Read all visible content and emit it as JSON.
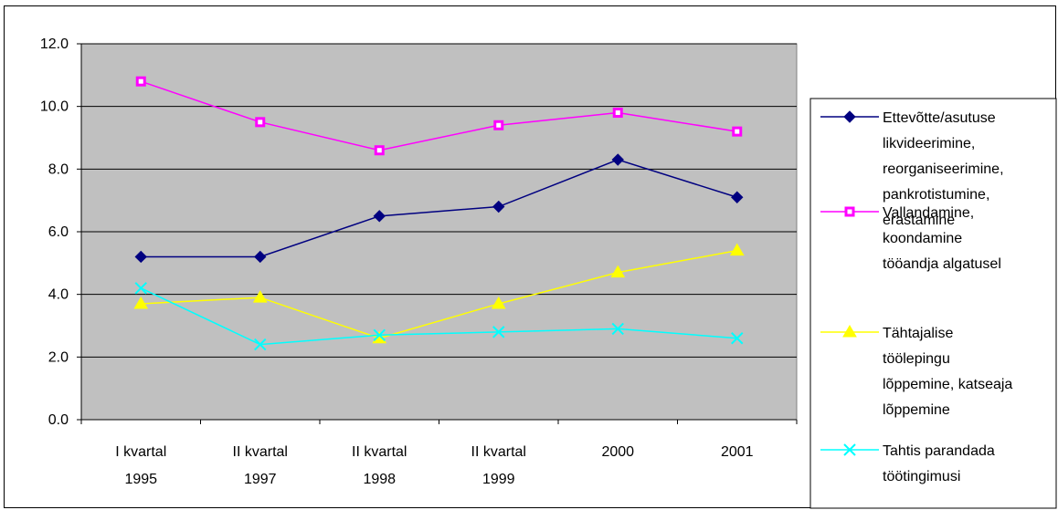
{
  "chart_data": {
    "type": "line",
    "categories": [
      [
        "I kvartal",
        "1995"
      ],
      [
        "II kvartal",
        "1997"
      ],
      [
        "II kvartal",
        "1998"
      ],
      [
        "II kvartal",
        "1999"
      ],
      [
        "2000"
      ],
      [
        "2001"
      ]
    ],
    "ylim": [
      0,
      12
    ],
    "yticks": [
      "0.0",
      "2.0",
      "4.0",
      "6.0",
      "8.0",
      "10.0",
      "12.0"
    ],
    "grid": true,
    "plot_background": "#c0c0c0",
    "legend_position": "right",
    "series": [
      {
        "name": "Ettevõtte/asutuse likvideerimine, reorganiseerimine, pankrotistumine, erastamine",
        "legend_lines": [
          "Ettevõtte/asutuse",
          "likvideerimine,",
          "reorganiseerimine,",
          "pankrotistumine,",
          "erastamine"
        ],
        "values": [
          5.2,
          5.2,
          6.5,
          6.8,
          8.3,
          7.1
        ],
        "color": "#000080",
        "marker": "diamond"
      },
      {
        "name": "Vallandamine, koondamine tööandja algatusel",
        "legend_lines": [
          "Vallandamine,",
          "koondamine",
          "tööandja algatusel"
        ],
        "values": [
          10.8,
          9.5,
          8.6,
          9.4,
          9.8,
          9.2
        ],
        "color": "#ff00ff",
        "marker": "square"
      },
      {
        "name": "Tähtajalise töölepingu lõppemine, katseaja lõppemine",
        "legend_lines": [
          "Tähtajalise",
          "töölepingu",
          "lõppemine, katseaja",
          "lõppemine"
        ],
        "values": [
          3.7,
          3.9,
          2.6,
          3.7,
          4.7,
          5.4
        ],
        "color": "#ffff00",
        "marker": "triangle"
      },
      {
        "name": "Tahtis parandada töötingimusi",
        "legend_lines": [
          "Tahtis parandada",
          "töötingimusi"
        ],
        "values": [
          4.2,
          2.4,
          2.7,
          2.8,
          2.9,
          2.6
        ],
        "color": "#00ffff",
        "marker": "x"
      }
    ]
  }
}
